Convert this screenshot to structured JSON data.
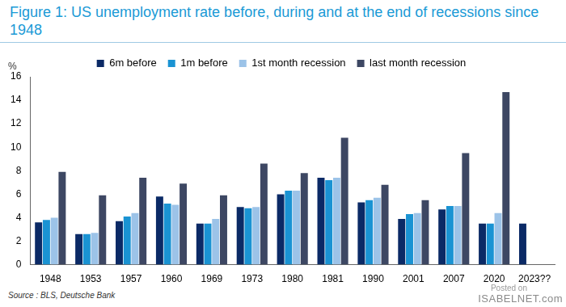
{
  "chart_data": {
    "type": "bar",
    "title": "Figure 1: US unemployment rate before, during and at the end of recessions since 1948",
    "ylabel": "%",
    "categories": [
      "1948",
      "1953",
      "1957",
      "1960",
      "1969",
      "1973",
      "1980",
      "1981",
      "1990",
      "2001",
      "2007",
      "2020",
      "2023??"
    ],
    "series": [
      {
        "name": "6m before",
        "color": "#0b2a66",
        "values": [
          3.6,
          2.6,
          3.7,
          5.8,
          3.5,
          4.9,
          6.0,
          7.4,
          5.3,
          3.9,
          4.7,
          3.5,
          3.5
        ]
      },
      {
        "name": "1m before",
        "color": "#1a93d3",
        "values": [
          3.8,
          2.6,
          4.1,
          5.2,
          3.5,
          4.8,
          6.3,
          7.2,
          5.5,
          4.3,
          5.0,
          3.5,
          null
        ]
      },
      {
        "name": "1st month recession",
        "color": "#9cc3e8",
        "values": [
          4.0,
          2.7,
          4.4,
          5.1,
          3.9,
          4.9,
          6.3,
          7.4,
          5.7,
          4.4,
          5.0,
          4.4,
          null
        ]
      },
      {
        "name": "last month recession",
        "color": "#3d4763",
        "values": [
          7.9,
          5.9,
          7.4,
          6.9,
          5.9,
          8.6,
          7.8,
          10.8,
          6.8,
          5.5,
          9.5,
          14.7,
          null
        ]
      }
    ],
    "ylim": [
      0,
      16
    ],
    "yticks": [
      0,
      2,
      4,
      6,
      8,
      10,
      12,
      14,
      16
    ],
    "grid": false,
    "legend": "top",
    "annotations": [
      "Source : BLS, Deutsche Bank",
      "Posted on",
      "ISABELNET.com"
    ]
  }
}
